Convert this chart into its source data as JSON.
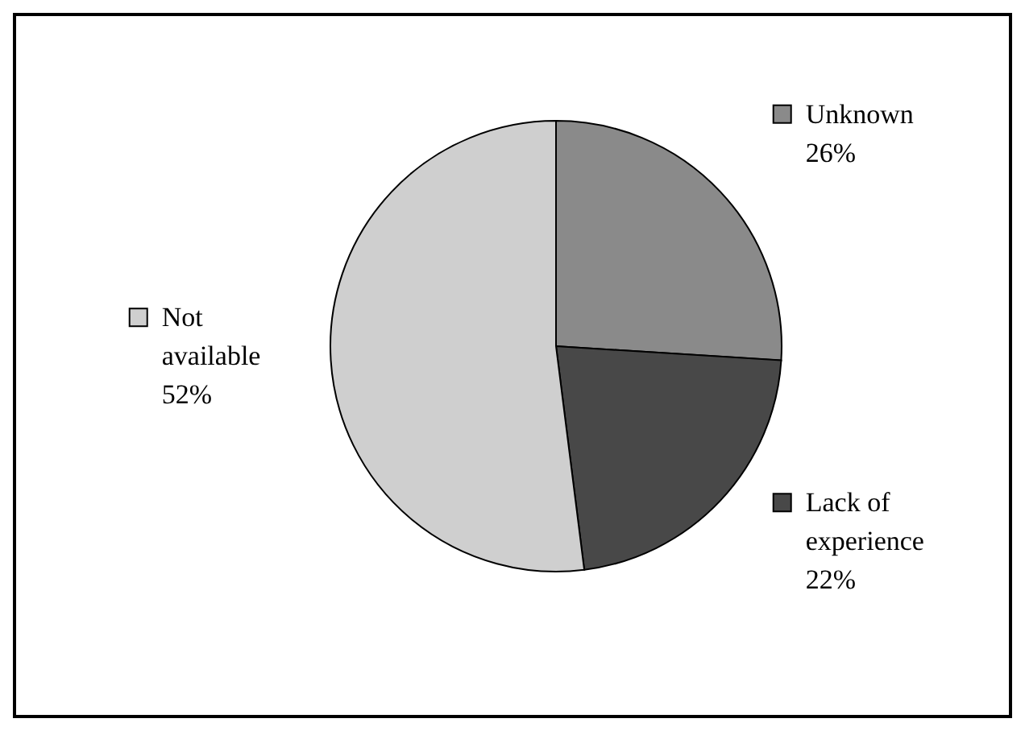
{
  "chart_data": {
    "type": "pie",
    "categories": [
      "Unknown",
      "Lack of experience",
      "Not available"
    ],
    "values": [
      26,
      22,
      52
    ],
    "colors": [
      "#8a8a8a",
      "#484848",
      "#cfcfcf"
    ],
    "value_labels": [
      "26%",
      "22%",
      "52%"
    ],
    "legend": "top left"
  }
}
